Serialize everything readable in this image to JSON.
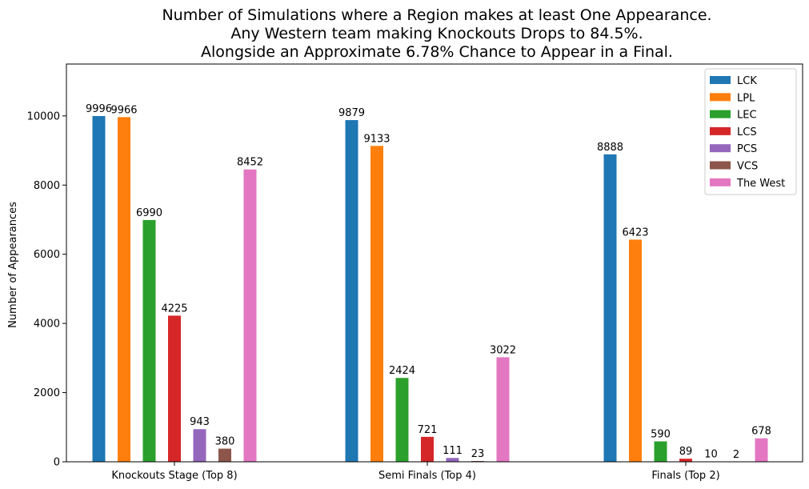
{
  "chart_data": {
    "type": "bar",
    "title_lines": [
      "Number of Simulations where a Region makes at least One Appearance.",
      "Any Western team making Knockouts Drops to 84.5%.",
      "Alongside an Approximate 6.78% Chance to Appear in a Final."
    ],
    "xlabel": "",
    "ylabel": "Number of Appearances",
    "ylim": [
      0,
      11500
    ],
    "yticks": [
      0,
      2000,
      4000,
      6000,
      8000,
      10000
    ],
    "categories": [
      "Knockouts Stage (Top 8)",
      "Semi Finals (Top 4)",
      "Finals (Top 2)"
    ],
    "series": [
      {
        "name": "LCK",
        "color": "#1f77b4",
        "values": [
          9996,
          9879,
          8888
        ]
      },
      {
        "name": "LPL",
        "color": "#ff7f0e",
        "values": [
          9966,
          9133,
          6423
        ]
      },
      {
        "name": "LEC",
        "color": "#2ca02c",
        "values": [
          6990,
          2424,
          590
        ]
      },
      {
        "name": "LCS",
        "color": "#d62728",
        "values": [
          4225,
          721,
          89
        ]
      },
      {
        "name": "PCS",
        "color": "#9467bd",
        "values": [
          943,
          111,
          10
        ]
      },
      {
        "name": "VCS",
        "color": "#8c564b",
        "values": [
          380,
          23,
          2
        ]
      },
      {
        "name": "The West",
        "color": "#e377c2",
        "values": [
          8452,
          3022,
          678
        ]
      }
    ],
    "legend_position": "top-right",
    "grid": false
  }
}
